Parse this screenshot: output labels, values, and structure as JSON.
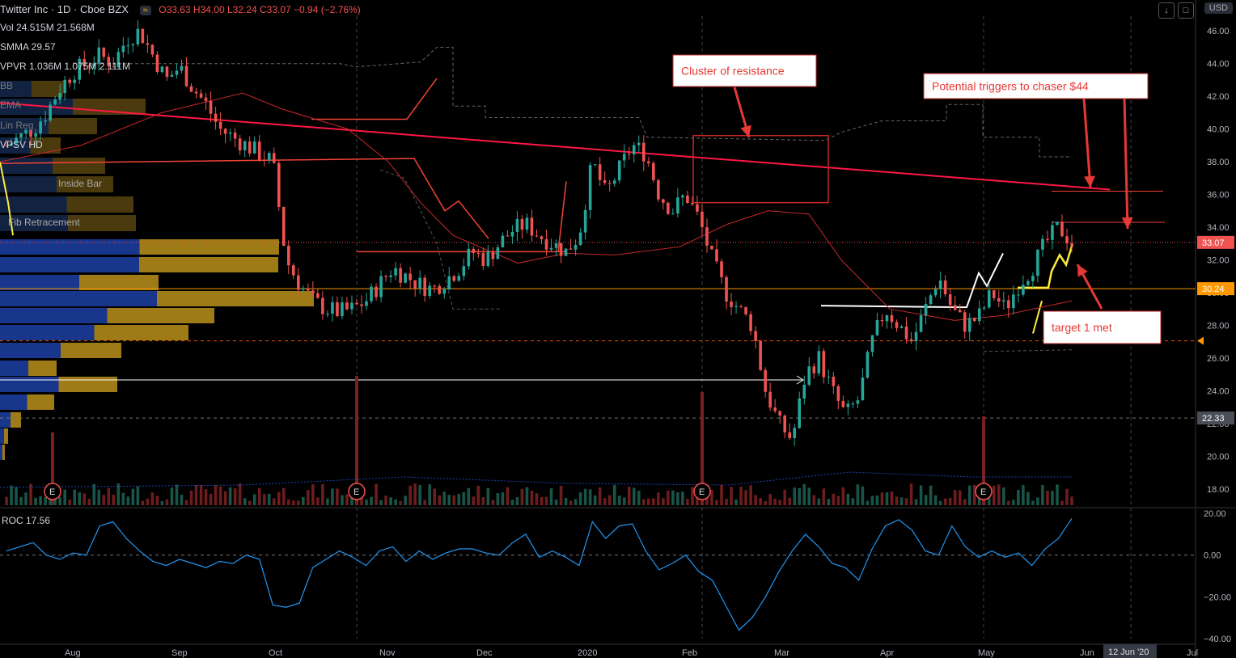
{
  "header": {
    "symbol": "Twitter Inc · 1D · Cboe BZX",
    "badge": "≈",
    "ohlc": "O33.63 H34.00 L32.24 C33.07 −0.94 (−2.76%)",
    "currency": "USD"
  },
  "indicators": {
    "vol": "Vol 24.515M 21.568M",
    "smma": "SMMA 29.57",
    "vpvr": "VPVR 1.036M 1.075M 2.111M",
    "bb": "BB",
    "ema": "EMA",
    "linreg": "Lin Reg",
    "vpsv": "VPSV HD",
    "inside_bar": "Inside Bar",
    "fib": "Fib Retracement",
    "roc": "ROC 17.56"
  },
  "annotations": {
    "cluster": "Cluster of resistance",
    "triggers": "Potential triggers to chaser $44",
    "target": "target 1 met"
  },
  "chart_data": [
    {
      "type": "candlestick",
      "title": "Twitter Inc",
      "ylim": [
        17,
        47
      ],
      "yticks": [
        "46.00",
        "44.00",
        "42.00",
        "40.00",
        "38.00",
        "36.00",
        "34.00",
        "32.00",
        "30.00",
        "28.00",
        "26.00",
        "24.00",
        "22.00",
        "20.00",
        "18.00"
      ],
      "price_labels": [
        {
          "value": 33.07,
          "label": "33.07",
          "color": "#ef5350"
        },
        {
          "value": 30.24,
          "label": "30.24",
          "color": "#ff9800"
        },
        {
          "value": 22.33,
          "label": "22.33",
          "color": "#4a4e59"
        }
      ],
      "xticks": [
        "Aug",
        "Sep",
        "Oct",
        "Nov",
        "Dec",
        "2020",
        "Feb",
        "Mar",
        "Apr",
        "May",
        "Jun",
        "Jul"
      ],
      "date_label": "12 Jun '20",
      "earnings_marker": "E",
      "close_path": [
        39.0,
        39.5,
        40.0,
        41.0,
        42.5,
        43.5,
        44.0,
        44.5,
        44.0,
        45.5,
        46.0,
        44.5,
        43.0,
        43.8,
        42.5,
        41.5,
        40.0,
        39.5,
        39.0,
        38.5,
        38.0,
        32.0,
        30.5,
        29.5,
        29.0,
        28.8,
        29.0,
        29.5,
        30.5,
        31.5,
        31.0,
        30.5,
        30.2,
        30.8,
        31.5,
        32.5,
        32.0,
        33.0,
        33.8,
        34.2,
        33.5,
        33.0,
        32.5,
        33.5,
        38.0,
        36.0,
        37.5,
        39.0,
        38.5,
        36.0,
        35.0,
        36.0,
        34.5,
        32.0,
        30.0,
        29.0,
        28.0,
        24.0,
        22.0,
        21.0,
        25.0,
        26.0,
        24.0,
        22.5,
        23.5,
        27.0,
        29.0,
        28.0,
        27.0,
        29.0,
        31.0,
        29.0,
        28.0,
        28.5,
        30.0,
        29.0,
        30.5,
        31.5,
        33.0,
        34.0,
        33.07
      ]
    },
    {
      "type": "line",
      "title": "ROC",
      "ylim": [
        -42,
        22
      ],
      "yticks": [
        "20.00",
        "0.00",
        "−20.00",
        "−40.00"
      ],
      "values": [
        2,
        4,
        6,
        0,
        -2,
        1,
        0,
        14,
        16,
        8,
        2,
        -3,
        -5,
        -2,
        -4,
        -6,
        -3,
        -4,
        0,
        -2,
        -24,
        -25,
        -23,
        -6,
        -2,
        2,
        -1,
        -5,
        2,
        4,
        -3,
        2,
        -2,
        1,
        3,
        3,
        1,
        0,
        6,
        10,
        -1,
        2,
        -1,
        -5,
        16,
        8,
        14,
        15,
        2,
        -7,
        -4,
        0,
        -8,
        -12,
        -24,
        -36,
        -30,
        -20,
        -8,
        2,
        10,
        4,
        -4,
        -6,
        -12,
        3,
        14,
        17,
        12,
        2,
        0,
        14,
        4,
        -1,
        2,
        -1,
        1,
        -5,
        3,
        8,
        17.56
      ]
    }
  ]
}
